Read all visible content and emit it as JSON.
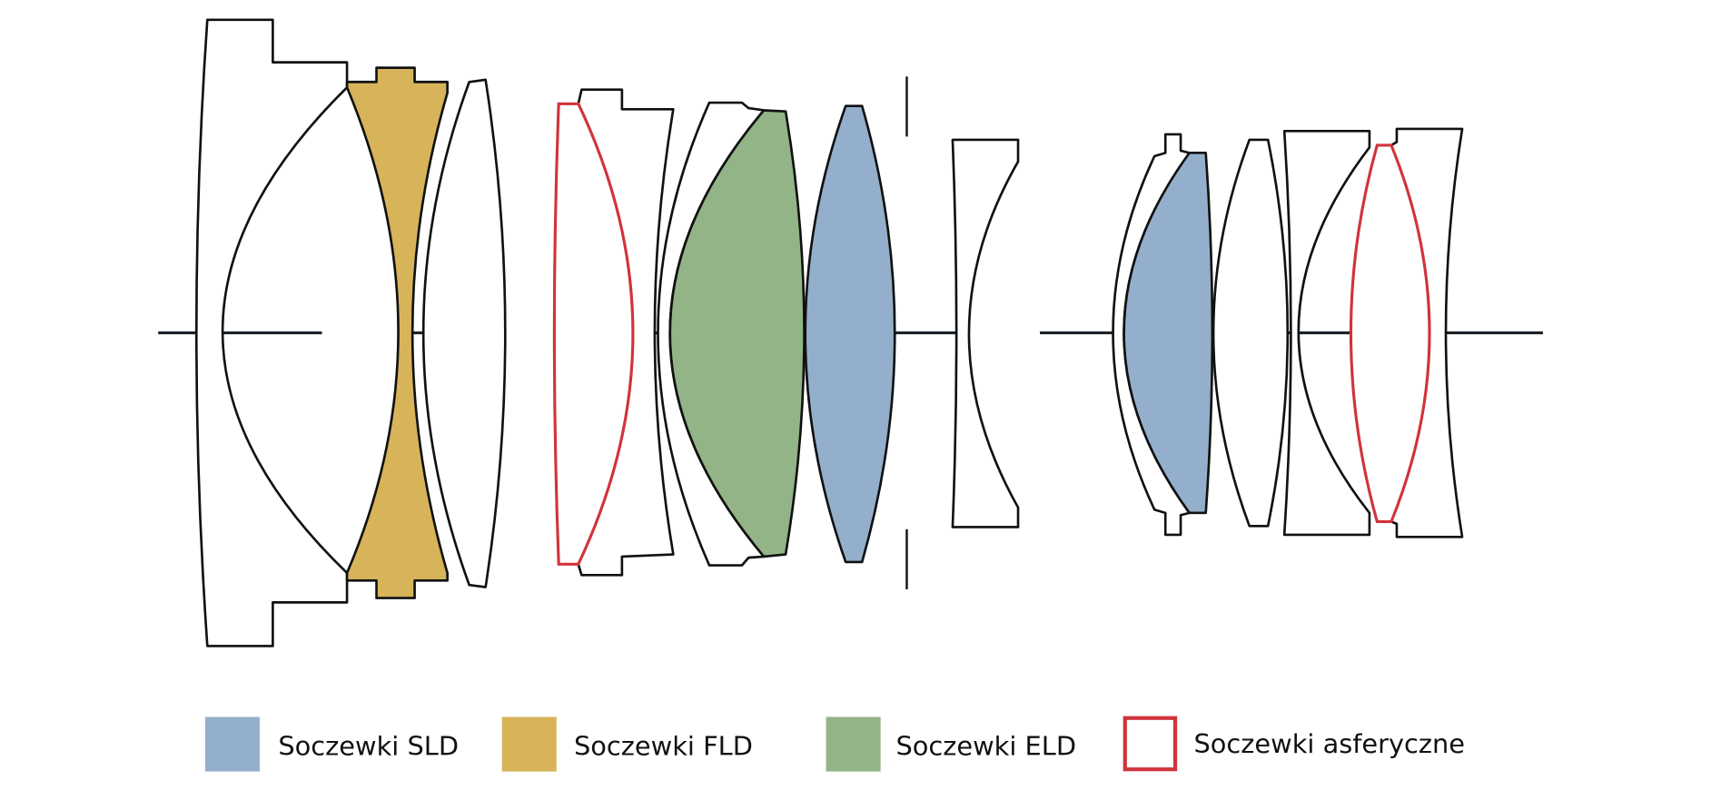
{
  "colors": {
    "sld": "#94afcb",
    "fld": "#d7b45a",
    "eld": "#93b486",
    "aspherical": "#d0343a",
    "outline": "#111111"
  },
  "legend": [
    {
      "label": "Soczewki SLD",
      "type": "SLD"
    },
    {
      "label": "Soczewki FLD",
      "type": "FLD"
    },
    {
      "label": "Soczewki ELD",
      "type": "ELD"
    },
    {
      "label": "Soczewki asferyczne",
      "type": "aspherical"
    }
  ]
}
